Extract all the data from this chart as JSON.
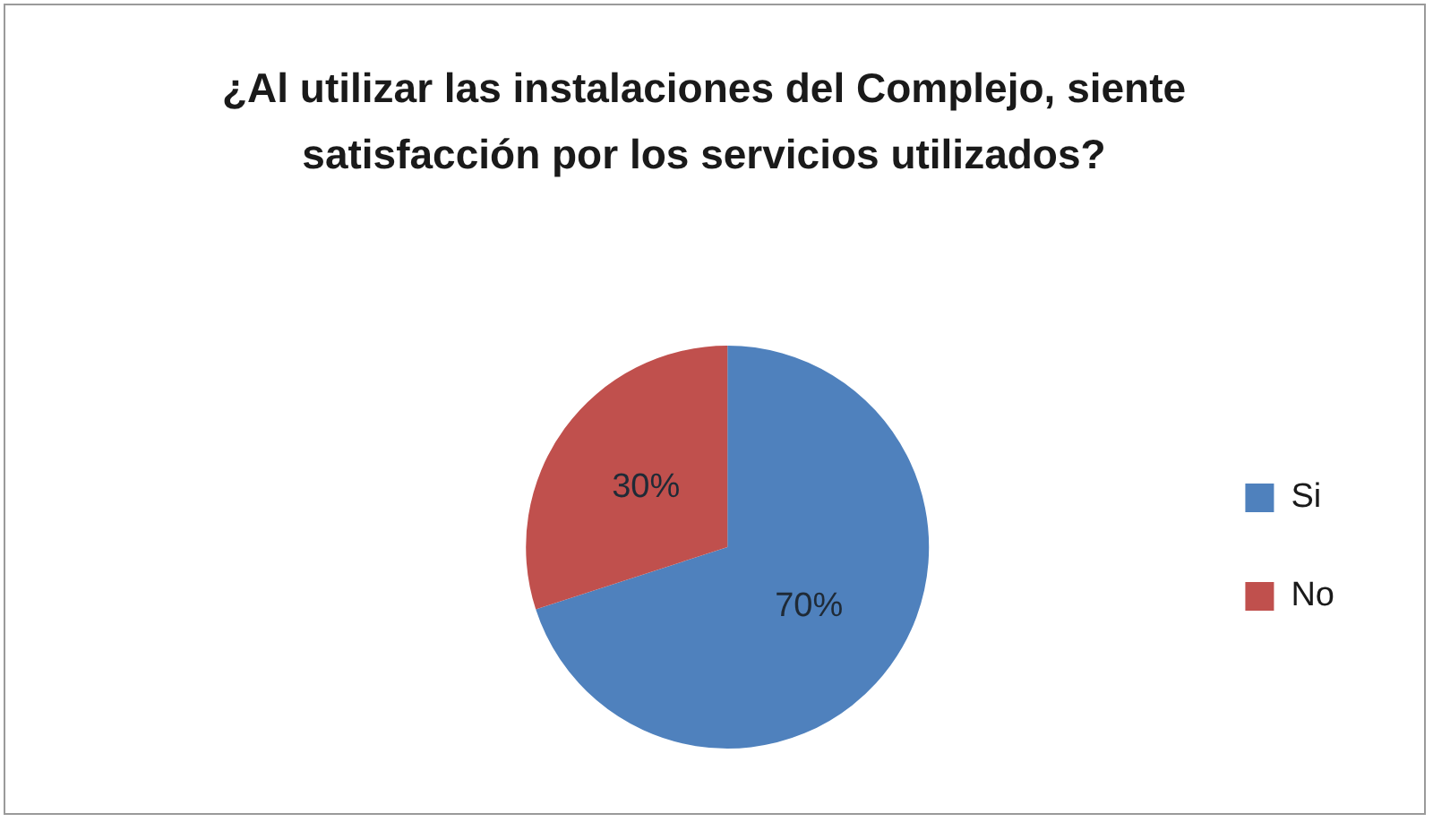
{
  "chart_data": {
    "type": "pie",
    "title": "¿Al utilizar las instalaciones del Complejo, siente satisfacción por los servicios utilizados?",
    "categories": [
      "Si",
      "No"
    ],
    "values": [
      70,
      30
    ],
    "colors": [
      "#4f81bd",
      "#c0504d"
    ],
    "value_labels": [
      "70%",
      "30%"
    ],
    "legend": "right"
  }
}
